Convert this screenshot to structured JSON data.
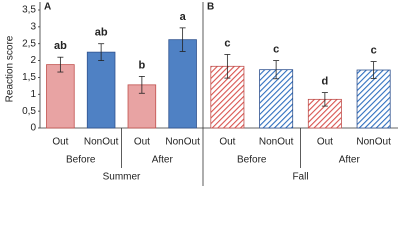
{
  "chart_data": [
    {
      "type": "bar",
      "panel": "A",
      "ylabel": "Reaction score",
      "categories": [
        "Out",
        "NonOut",
        "Out",
        "NonOut"
      ],
      "groups": [
        "Before",
        "After"
      ],
      "group_label": "Summer",
      "values": [
        1.88,
        2.25,
        1.28,
        2.62
      ],
      "errors": [
        0.22,
        0.25,
        0.25,
        0.35
      ],
      "annotations": [
        "ab",
        "ab",
        "b",
        "a"
      ],
      "colors": [
        "#e8a3a3",
        "#4f81c4",
        "#e8a3a3",
        "#4f81c4"
      ],
      "edge_colors": [
        "#c0504d",
        "#2f528f",
        "#c0504d",
        "#2f528f"
      ],
      "hatched": false,
      "ylim": [
        0,
        3.5
      ],
      "yticks": [
        0,
        {
          "value": 0.5,
          "label": "0,5"
        },
        1,
        {
          "value": 1.5,
          "label": "1,5"
        },
        2,
        {
          "value": 2.5,
          "label": "2,5"
        },
        3,
        {
          "value": 3.5,
          "label": "3,5"
        }
      ]
    },
    {
      "type": "bar",
      "panel": "B",
      "categories": [
        "Out",
        "NonOut",
        "Out",
        "NonOut"
      ],
      "groups": [
        "Before",
        "After"
      ],
      "group_label": "Fall",
      "values": [
        1.83,
        1.73,
        0.85,
        1.72
      ],
      "errors": [
        0.35,
        0.27,
        0.2,
        0.25
      ],
      "annotations": [
        "c",
        "c",
        "d",
        "c"
      ],
      "colors": [
        "#d9534f",
        "#2f6fbf",
        "#d9534f",
        "#2f6fbf"
      ],
      "edge_colors": [
        "#c0504d",
        "#2f528f",
        "#c0504d",
        "#2f528f"
      ],
      "hatched": true,
      "ylim": [
        0,
        3.5
      ]
    }
  ]
}
